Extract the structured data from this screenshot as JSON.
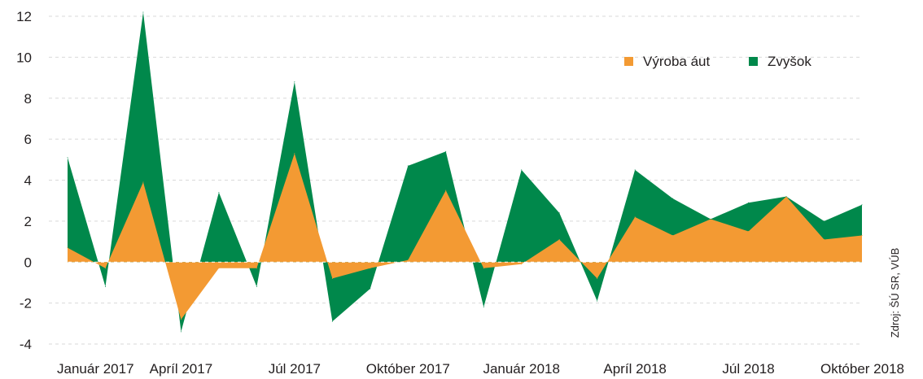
{
  "chart_data": {
    "type": "area",
    "stacked": true,
    "x": [
      "Január 2017",
      "Február 2017",
      "Marec 2017",
      "Apríl 2017",
      "Máj 2017",
      "Jún 2017",
      "Júl 2017",
      "August 2017",
      "September 2017",
      "Október 2017",
      "November 2017",
      "December 2017",
      "Január 2018",
      "Február 2018",
      "Marec 2018",
      "Apríl 2018",
      "Máj 2018",
      "Jún 2018",
      "Júl 2018",
      "August 2018",
      "September 2018",
      "Október 2018"
    ],
    "x_tick_labels": [
      "Január 2017",
      "",
      "",
      "Apríl 2017",
      "",
      "",
      "Júl 2017",
      "",
      "",
      "Október 2017",
      "",
      "",
      "Január 2018",
      "",
      "",
      "Apríl 2018",
      "",
      "",
      "Júl 2018",
      "",
      "",
      "Október 2018"
    ],
    "series": [
      {
        "name": "Výroba áut",
        "color": "#f39a33",
        "values": [
          0.7,
          -0.3,
          3.9,
          -2.8,
          -0.3,
          -0.3,
          5.3,
          -0.8,
          -0.3,
          0.1,
          3.5,
          -0.3,
          -0.1,
          1.1,
          -0.8,
          2.2,
          1.3,
          2.1,
          1.5,
          3.2,
          1.1,
          1.3
        ]
      },
      {
        "name": "Zvyšok",
        "color": "#00884b",
        "values": [
          4.4,
          -0.9,
          8.3,
          -0.6,
          3.7,
          -0.9,
          3.5,
          -2.1,
          -1.0,
          4.6,
          1.9,
          -1.9,
          4.6,
          1.3,
          -1.1,
          2.3,
          1.8,
          0.0,
          1.4,
          0.0,
          0.9,
          1.5
        ]
      }
    ],
    "totals": [
      5.1,
      -1.2,
      12.2,
      -3.4,
      3.4,
      -1.2,
      8.8,
      -2.9,
      -1.3,
      4.7,
      5.4,
      -2.2,
      4.5,
      2.4,
      -1.9,
      4.5,
      3.1,
      2.1,
      2.9,
      3.2,
      2.0,
      2.8
    ],
    "y_ticks": [
      "12",
      "10",
      "8",
      "6",
      "4",
      "2",
      "0",
      "-2",
      "-4"
    ],
    "ylim": [
      -4,
      12
    ],
    "grid": true,
    "legend_position": "top-right",
    "source": "Zdroj: ŠÚ SR, VÚB"
  }
}
